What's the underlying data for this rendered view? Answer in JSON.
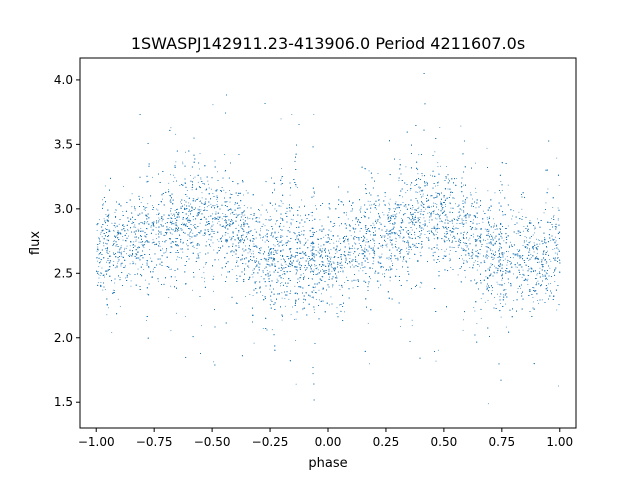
{
  "chart_data": {
    "type": "scatter",
    "title": "1SWASPJ142911.23-413906.0 Period 4211607.0s",
    "xlabel": "phase",
    "ylabel": "flux",
    "xlim": [
      -1.07,
      1.07
    ],
    "ylim": [
      1.3,
      4.17
    ],
    "xticks": [
      -1.0,
      -0.75,
      -0.5,
      -0.25,
      0.0,
      0.25,
      0.5,
      0.75,
      1.0
    ],
    "xtick_labels": [
      "−1.00",
      "−0.75",
      "−0.50",
      "−0.25",
      "0.00",
      "0.25",
      "0.50",
      "0.75",
      "1.00"
    ],
    "yticks": [
      1.5,
      2.0,
      2.5,
      3.0,
      3.5,
      4.0
    ],
    "ytick_labels": [
      "1.5",
      "2.0",
      "2.5",
      "3.0",
      "3.5",
      "4.0"
    ],
    "grid": false,
    "marker_color": "#1f77b4",
    "profile": {
      "phase": [
        -1.0,
        -0.9,
        -0.8,
        -0.7,
        -0.6,
        -0.5,
        -0.4,
        -0.3,
        -0.2,
        -0.1,
        0.0,
        0.1,
        0.2,
        0.3,
        0.4,
        0.5,
        0.6,
        0.7,
        0.8,
        0.9,
        1.0
      ],
      "median_flux": [
        2.66,
        2.68,
        2.78,
        2.84,
        2.93,
        2.92,
        2.82,
        2.65,
        2.62,
        2.58,
        2.62,
        2.68,
        2.78,
        2.85,
        2.93,
        2.92,
        2.82,
        2.67,
        2.62,
        2.6,
        2.66
      ],
      "spread": 0.19
    },
    "n_points": 16000
  }
}
